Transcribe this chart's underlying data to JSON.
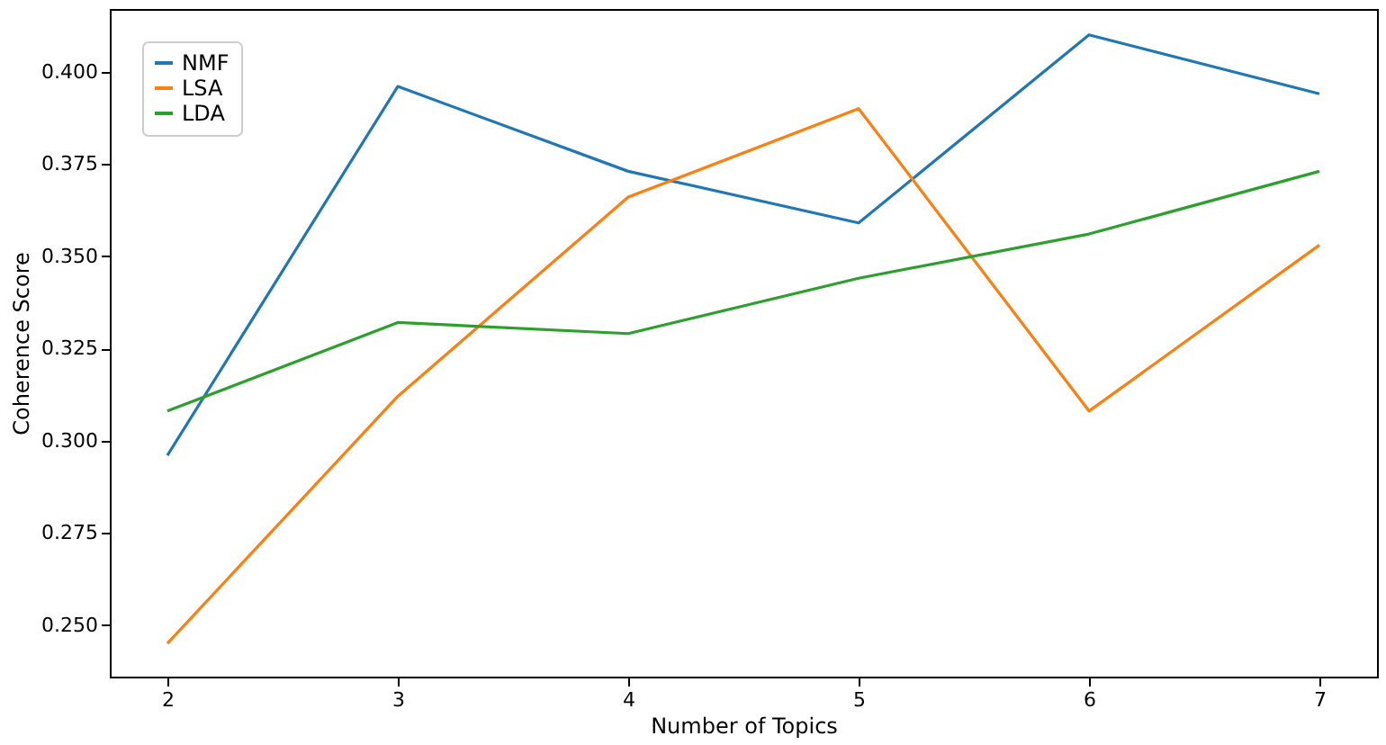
{
  "chart_data": {
    "type": "line",
    "xlabel": "Number of Topics",
    "ylabel": "Coherence Score",
    "x": [
      2,
      3,
      4,
      5,
      6,
      7
    ],
    "series": [
      {
        "name": "NMF",
        "color": "#1f77b4",
        "values": [
          0.296,
          0.396,
          0.373,
          0.359,
          0.41,
          0.394
        ]
      },
      {
        "name": "LSA",
        "color": "#ff7f0e",
        "values": [
          0.245,
          0.312,
          0.366,
          0.39,
          0.308,
          0.353
        ]
      },
      {
        "name": "LDA",
        "color": "#2ca02c",
        "values": [
          0.308,
          0.332,
          0.329,
          0.344,
          0.356,
          0.373
        ]
      }
    ],
    "xlim": [
      1.75,
      7.25
    ],
    "xticks": [
      2,
      3,
      4,
      5,
      6,
      7
    ],
    "ylim": [
      0.236,
      0.417
    ],
    "yticks": [
      {
        "value": 0.25,
        "label": "0.250"
      },
      {
        "value": 0.275,
        "label": "0.275"
      },
      {
        "value": 0.3,
        "label": "0.300"
      },
      {
        "value": 0.325,
        "label": "0.325"
      },
      {
        "value": 0.35,
        "label": "0.350"
      },
      {
        "value": 0.375,
        "label": "0.375"
      },
      {
        "value": 0.4,
        "label": "0.400"
      }
    ],
    "grid": false,
    "legend": "top left",
    "marker": "none",
    "line_style": "solid"
  }
}
